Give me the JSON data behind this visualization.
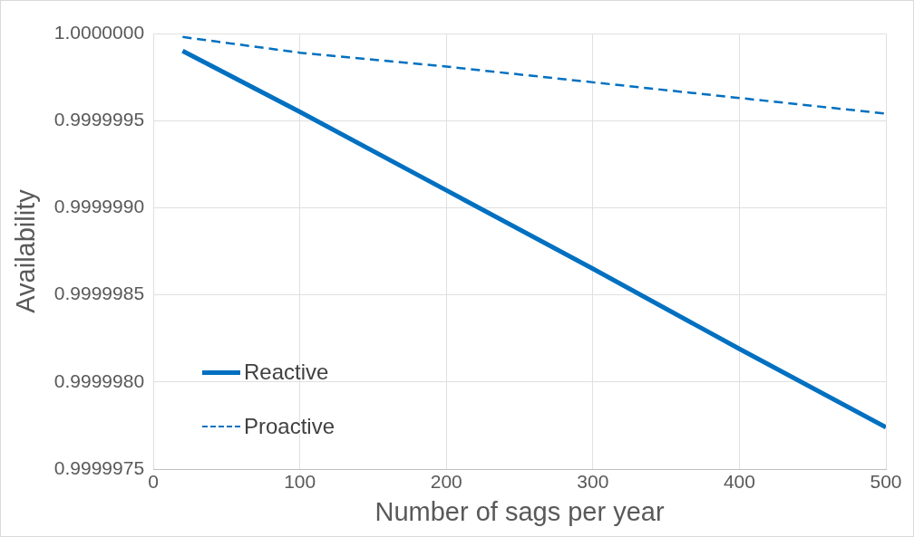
{
  "chart_data": {
    "type": "line",
    "xlabel": "Number of sags per year",
    "ylabel": "Availability",
    "x": [
      20,
      100,
      200,
      300,
      400,
      500
    ],
    "series": [
      {
        "name": "Reactive",
        "color": "#0070c0",
        "line_style": "solid",
        "values": [
          0.9999999,
          0.99999955,
          0.9999991,
          0.99999865,
          0.99999819,
          0.99999774
        ]
      },
      {
        "name": "Proactive",
        "color": "#0070c0",
        "line_style": "dashed",
        "values": [
          0.99999998,
          0.99999989,
          0.99999981,
          0.99999972,
          0.99999963,
          0.99999954
        ]
      }
    ],
    "xlim": [
      0,
      500
    ],
    "xticks": [
      0,
      100,
      200,
      300,
      400,
      500
    ],
    "ylim": [
      0.9999975,
      1.0
    ],
    "yticks": [
      {
        "value": 0.9999975,
        "label": "0.9999975"
      },
      {
        "value": 0.999998,
        "label": "0.9999980"
      },
      {
        "value": 0.9999985,
        "label": "0.9999985"
      },
      {
        "value": 0.999999,
        "label": "0.9999990"
      },
      {
        "value": 0.9999995,
        "label": "0.9999995"
      },
      {
        "value": 1.0,
        "label": "1.0000000"
      }
    ],
    "grid": true,
    "legend": "bottom left",
    "marker": "none"
  }
}
